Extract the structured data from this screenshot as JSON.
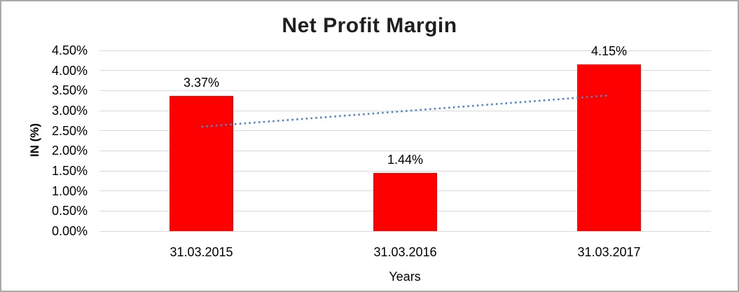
{
  "window": {
    "background_color": "#ffffff",
    "border_color": "#a9a9a9"
  },
  "chart_data": {
    "type": "bar",
    "title": "Net Profit Margin",
    "xlabel": "Years",
    "ylabel": "IN (%)",
    "categories": [
      "31.03.2015",
      "31.03.2016",
      "31.03.2017"
    ],
    "values": [
      3.37,
      1.44,
      4.15
    ],
    "data_labels": [
      "3.37%",
      "1.44%",
      "4.15%"
    ],
    "ylim": [
      0,
      4.5
    ],
    "ytick_step": 0.5,
    "ytick_labels": [
      "0.00%",
      "0.50%",
      "1.00%",
      "1.50%",
      "2.00%",
      "2.50%",
      "3.00%",
      "3.50%",
      "4.00%",
      "4.50%"
    ],
    "grid": true,
    "legend": "none",
    "bar_color": "#ff0000",
    "gridline_color": "#d9d9d9",
    "trendline": {
      "type": "linear",
      "style": "dotted",
      "color": "#4f87c6",
      "start_value": 2.6,
      "end_value": 3.38
    }
  }
}
